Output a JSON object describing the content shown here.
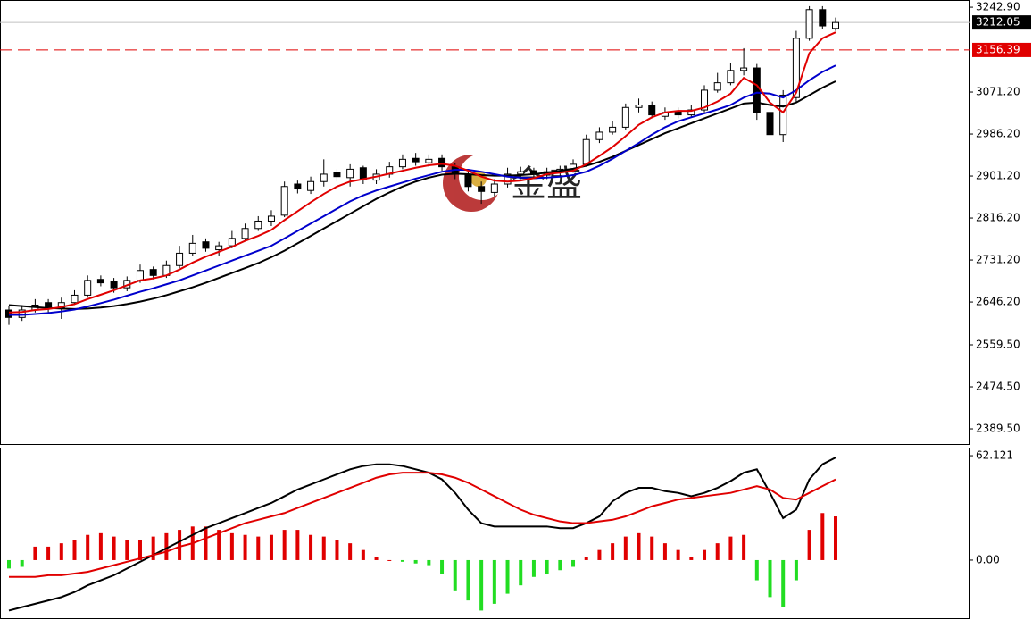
{
  "watermark": "金盛",
  "chart_data": [
    {
      "type": "candlestick",
      "ylim": [
        2357,
        3257.5
      ],
      "yticks": [
        {
          "value": 3242.9,
          "label": "3242.90"
        },
        {
          "value": 3071.2,
          "label": "3071.20"
        },
        {
          "value": 2986.2,
          "label": "2986.20"
        },
        {
          "value": 2901.2,
          "label": "2901.20"
        },
        {
          "value": 2816.2,
          "label": "2816.20"
        },
        {
          "value": 2731.2,
          "label": "2731.20"
        },
        {
          "value": 2646.2,
          "label": "2646.20"
        },
        {
          "value": 2559.5,
          "label": "2559.50"
        },
        {
          "value": 2474.5,
          "label": "2474.50"
        },
        {
          "value": 2389.5,
          "label": "2389.50"
        }
      ],
      "current_price": {
        "value": 3212.05,
        "label": "3212.05"
      },
      "level_line": {
        "value": 3156.39,
        "label": "3156.39",
        "color": "#e00000"
      },
      "up_color": "#ffffff",
      "down_color": "#000000",
      "open": [
        2630,
        2615,
        2630,
        2645,
        2635,
        2645,
        2660,
        2692,
        2688,
        2675,
        2690,
        2712,
        2700,
        2720,
        2745,
        2768,
        2752,
        2760,
        2775,
        2795,
        2810,
        2822,
        2885,
        2872,
        2890,
        2908,
        2898,
        2918,
        2893,
        2905,
        2920,
        2937,
        2928,
        2937,
        2920,
        2905,
        2880,
        2868,
        2885,
        2905,
        2912,
        2903,
        2910,
        2915,
        2925,
        2975,
        2990,
        3000,
        3040,
        3045,
        3022,
        3032,
        3025,
        3035,
        3075,
        3090,
        3115,
        3120,
        3030,
        2985,
        3060,
        3180,
        3238,
        3200
      ],
      "high": [
        2638,
        2640,
        2652,
        2652,
        2655,
        2670,
        2700,
        2700,
        2695,
        2698,
        2722,
        2718,
        2730,
        2760,
        2782,
        2775,
        2768,
        2790,
        2805,
        2820,
        2832,
        2890,
        2892,
        2900,
        2935,
        2915,
        2925,
        2922,
        2915,
        2930,
        2945,
        2948,
        2945,
        2945,
        2928,
        2912,
        2890,
        2895,
        2918,
        2920,
        2918,
        2918,
        2922,
        2935,
        2985,
        3000,
        3012,
        3048,
        3058,
        3052,
        3040,
        3040,
        3045,
        3085,
        3110,
        3130,
        3160,
        3128,
        3035,
        3075,
        3195,
        3245,
        3245,
        3222
      ],
      "low": [
        2600,
        2608,
        2625,
        2625,
        2612,
        2640,
        2655,
        2678,
        2665,
        2668,
        2685,
        2692,
        2695,
        2715,
        2740,
        2748,
        2740,
        2755,
        2770,
        2790,
        2800,
        2818,
        2866,
        2865,
        2880,
        2890,
        2880,
        2885,
        2885,
        2898,
        2915,
        2922,
        2920,
        2912,
        2895,
        2870,
        2845,
        2860,
        2878,
        2895,
        2895,
        2895,
        2900,
        2908,
        2920,
        2968,
        2985,
        2995,
        3030,
        3018,
        3015,
        3018,
        3020,
        3030,
        3070,
        3085,
        3105,
        3015,
        2965,
        2970,
        3050,
        3175,
        3198,
        3195
      ],
      "close": [
        2615,
        2630,
        2640,
        2635,
        2645,
        2660,
        2690,
        2685,
        2675,
        2690,
        2710,
        2700,
        2720,
        2745,
        2765,
        2755,
        2760,
        2775,
        2795,
        2810,
        2820,
        2880,
        2875,
        2890,
        2905,
        2900,
        2915,
        2895,
        2905,
        2920,
        2935,
        2930,
        2935,
        2920,
        2905,
        2880,
        2870,
        2885,
        2905,
        2910,
        2905,
        2910,
        2915,
        2925,
        2975,
        2990,
        3000,
        3040,
        3045,
        3025,
        3030,
        3025,
        3035,
        3075,
        3090,
        3115,
        3120,
        3030,
        2985,
        3065,
        3180,
        3238,
        3205,
        3212
      ],
      "lines": [
        {
          "color": "#000000",
          "values": [
            2640,
            2638,
            2636,
            2634,
            2633,
            2632,
            2633,
            2635,
            2638,
            2642,
            2647,
            2653,
            2660,
            2668,
            2676,
            2685,
            2695,
            2705,
            2715,
            2725,
            2737,
            2750,
            2765,
            2780,
            2795,
            2810,
            2825,
            2840,
            2855,
            2868,
            2880,
            2890,
            2898,
            2904,
            2906,
            2905,
            2903,
            2902,
            2902,
            2903,
            2905,
            2908,
            2912,
            2916,
            2922,
            2930,
            2940,
            2952,
            2964,
            2976,
            2988,
            2998,
            3008,
            3018,
            3028,
            3038,
            3048,
            3050,
            3045,
            3042,
            3050,
            3065,
            3080,
            3093
          ]
        },
        {
          "color": "#0000cc",
          "values": [
            2620,
            2620,
            2622,
            2624,
            2627,
            2631,
            2637,
            2644,
            2651,
            2659,
            2667,
            2674,
            2682,
            2690,
            2700,
            2710,
            2720,
            2730,
            2740,
            2750,
            2760,
            2775,
            2790,
            2805,
            2820,
            2835,
            2850,
            2862,
            2872,
            2880,
            2888,
            2896,
            2903,
            2910,
            2914,
            2914,
            2910,
            2905,
            2900,
            2898,
            2897,
            2898,
            2900,
            2903,
            2910,
            2922,
            2936,
            2952,
            2968,
            2985,
            3000,
            3012,
            3020,
            3028,
            3036,
            3045,
            3060,
            3070,
            3068,
            3060,
            3075,
            3095,
            3112,
            3125
          ]
        },
        {
          "color": "#e00000",
          "values": [
            2625,
            2626,
            2630,
            2632,
            2636,
            2642,
            2652,
            2661,
            2670,
            2680,
            2690,
            2694,
            2700,
            2712,
            2726,
            2738,
            2748,
            2758,
            2770,
            2780,
            2792,
            2812,
            2830,
            2848,
            2865,
            2880,
            2890,
            2895,
            2900,
            2906,
            2912,
            2918,
            2923,
            2926,
            2922,
            2912,
            2900,
            2892,
            2890,
            2892,
            2897,
            2905,
            2908,
            2912,
            2925,
            2942,
            2960,
            2982,
            3005,
            3020,
            3030,
            3033,
            3033,
            3040,
            3052,
            3068,
            3100,
            3085,
            3050,
            3030,
            3070,
            3150,
            3180,
            3192
          ]
        }
      ]
    },
    {
      "type": "macd",
      "ylim": [
        -33.5,
        66.4
      ],
      "yticks": [
        62.121,
        {
          "value": 0,
          "label": "0.00"
        }
      ],
      "histogram": {
        "up_color": "#e00000",
        "down_color": "#22dd22",
        "values": [
          -5,
          -4,
          8,
          8,
          10,
          12,
          15,
          16,
          14,
          12,
          12,
          14,
          16,
          18,
          20,
          20,
          18,
          16,
          15,
          14,
          15,
          18,
          18,
          15,
          14,
          12,
          10,
          6,
          2,
          0,
          -1,
          -2,
          -3,
          -8,
          -18,
          -24,
          -30,
          -26,
          -20,
          -15,
          -10,
          -8,
          -6,
          -4,
          2,
          6,
          10,
          14,
          16,
          14,
          10,
          6,
          2,
          6,
          10,
          14,
          15,
          -12,
          -22,
          -28,
          -12,
          18,
          28,
          26
        ]
      },
      "lines": [
        {
          "color": "#000000",
          "values": [
            -30,
            -28,
            -26,
            -24,
            -22,
            -19,
            -15,
            -12,
            -9,
            -5,
            -1,
            3,
            7,
            11,
            15,
            19,
            22,
            25,
            28,
            31,
            34,
            38,
            42,
            45,
            48,
            51,
            54,
            56,
            57,
            57,
            56,
            54,
            52,
            48,
            40,
            30,
            22,
            20,
            20,
            20,
            20,
            20,
            19,
            19,
            22,
            26,
            35,
            40,
            43,
            43,
            41,
            40,
            38,
            40,
            43,
            47,
            52,
            54,
            40,
            25,
            30,
            48,
            57,
            61
          ]
        },
        {
          "color": "#e00000",
          "values": [
            -10,
            -10,
            -10,
            -9,
            -9,
            -8,
            -7,
            -5,
            -3,
            -1,
            1,
            3,
            5,
            8,
            10,
            13,
            16,
            19,
            22,
            24,
            26,
            28,
            31,
            34,
            37,
            40,
            43,
            46,
            49,
            51,
            52,
            52,
            52,
            51,
            49,
            46,
            42,
            38,
            34,
            30,
            27,
            25,
            23,
            22,
            22,
            23,
            24,
            26,
            29,
            32,
            34,
            36,
            37,
            38,
            39,
            40,
            42,
            44,
            42,
            37,
            36,
            40,
            44,
            48
          ]
        }
      ]
    }
  ]
}
